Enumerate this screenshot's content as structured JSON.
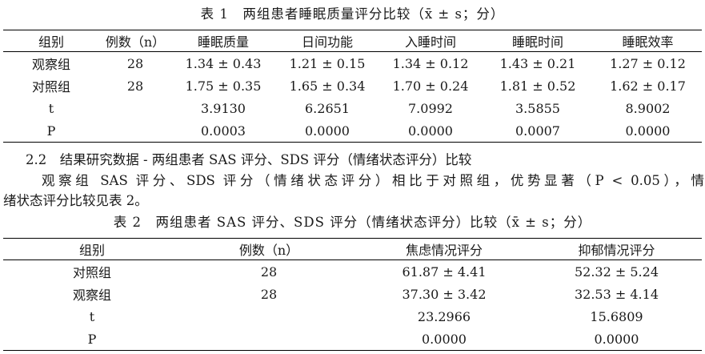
{
  "table1": {
    "caption": "表 1　两组患者睡眠质量评分比较（x̄ ± s；分）",
    "headers": [
      "组别",
      "例数（n）",
      "睡眠质量",
      "日间功能",
      "入睡时间",
      "睡眠时间",
      "睡眠效率"
    ],
    "rows": [
      [
        "观察组",
        "28",
        "1.34 ± 0.43",
        "1.21 ± 0.15",
        "1.34 ± 0.12",
        "1.43 ± 0.21",
        "1.27 ± 0.12"
      ],
      [
        "对照组",
        "28",
        "1.75 ± 0.35",
        "1.65 ± 0.34",
        "1.70 ± 0.24",
        "1.81 ± 0.52",
        "1.62 ± 0.17"
      ],
      [
        "t",
        "",
        "3.9130",
        "6.2651",
        "7.0992",
        "3.5855",
        "8.9002"
      ],
      [
        "P",
        "",
        "0.0003",
        "0.0000",
        "0.0000",
        "0.0007",
        "0.0000"
      ]
    ]
  },
  "section": {
    "heading": "2.2　结果研究数据 - 两组患者 SAS 评分、SDS 评分（情绪状态评分）比较",
    "body_line1": "观察组 SAS 评分、SDS 评分（情绪状态评分）相比于对照组，优势显著（P < 0.05），情",
    "body_line2": "绪状态评分比较见表 2。"
  },
  "table2": {
    "caption": "表 2　两组患者 SAS 评分、SDS 评分（情绪状态评分）比较（x̄ ± s；分）",
    "headers": [
      "组别",
      "例数（n）",
      "焦虑情况评分",
      "抑郁情况评分"
    ],
    "rows": [
      [
        "对照组",
        "28",
        "61.87 ± 4.41",
        "52.32 ± 5.24"
      ],
      [
        "观察组",
        "28",
        "37.30 ± 3.42",
        "32.53 ± 4.14"
      ],
      [
        "t",
        "",
        "23.2966",
        "15.6809"
      ],
      [
        "P",
        "",
        "0.0000",
        "0.0000"
      ]
    ]
  }
}
